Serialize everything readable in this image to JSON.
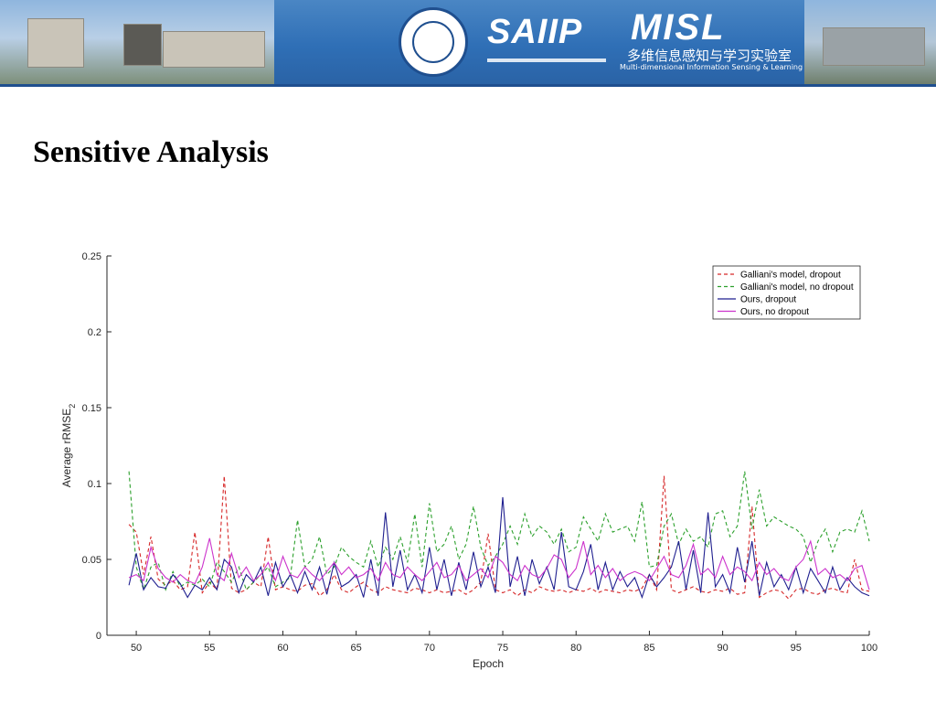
{
  "banner": {
    "saiip": "SAIIP",
    "misl": "MISL",
    "misl_cn": "多维信息感知与学习实验室",
    "misl_en": "Multi-dimensional Information Sensing & Learning Lab"
  },
  "title": "Sensitive Analysis",
  "chart_data": {
    "type": "line",
    "xlabel": "Epoch",
    "ylabel": "Average rRMSE",
    "ylabel_sub": "2",
    "xlim": [
      48,
      100
    ],
    "ylim": [
      0,
      0.25
    ],
    "xticks": [
      "50",
      "55",
      "60",
      "65",
      "70",
      "75",
      "80",
      "85",
      "90",
      "95",
      "100"
    ],
    "yticks": [
      "0",
      "0.05",
      "0.1",
      "0.15",
      "0.2",
      "0.25"
    ],
    "legend_position": "top-right",
    "grid": false,
    "series": [
      {
        "name": "Galliani's model, dropout",
        "color": "#d62728",
        "dash": "dashed",
        "x": [
          49.5,
          50,
          50.5,
          51,
          51.5,
          52,
          52.5,
          53,
          53.5,
          54,
          54.5,
          55,
          55.5,
          56,
          56.5,
          57,
          57.5,
          58,
          58.5,
          59,
          59.5,
          60,
          60.5,
          61,
          61.5,
          62,
          62.5,
          63,
          63.5,
          64,
          64.5,
          65,
          65.5,
          66,
          66.5,
          67,
          67.5,
          68,
          68.5,
          69,
          69.5,
          70,
          70.5,
          71,
          71.5,
          72,
          72.5,
          73,
          73.5,
          74,
          74.5,
          75,
          75.5,
          76,
          76.5,
          77,
          77.5,
          78,
          78.5,
          79,
          79.5,
          80,
          80.5,
          81,
          81.5,
          82,
          82.5,
          83,
          83.5,
          84,
          84.5,
          85,
          85.5,
          86,
          86.5,
          87,
          87.5,
          88,
          88.5,
          89,
          89.5,
          90,
          90.5,
          91,
          91.5,
          92,
          92.5,
          93,
          93.5,
          94,
          94.5,
          95,
          95.5,
          96,
          96.5,
          97,
          97.5,
          98,
          98.5,
          99,
          99.5,
          100
        ],
        "y": [
          0.073,
          0.068,
          0.04,
          0.065,
          0.037,
          0.033,
          0.036,
          0.03,
          0.032,
          0.068,
          0.028,
          0.035,
          0.03,
          0.105,
          0.031,
          0.028,
          0.03,
          0.035,
          0.032,
          0.065,
          0.03,
          0.032,
          0.03,
          0.029,
          0.033,
          0.034,
          0.026,
          0.03,
          0.04,
          0.03,
          0.028,
          0.032,
          0.035,
          0.03,
          0.028,
          0.032,
          0.03,
          0.029,
          0.028,
          0.031,
          0.03,
          0.028,
          0.03,
          0.028,
          0.029,
          0.03,
          0.027,
          0.03,
          0.035,
          0.067,
          0.03,
          0.028,
          0.03,
          0.026,
          0.03,
          0.028,
          0.032,
          0.03,
          0.029,
          0.03,
          0.028,
          0.03,
          0.029,
          0.031,
          0.028,
          0.03,
          0.029,
          0.028,
          0.03,
          0.029,
          0.031,
          0.04,
          0.03,
          0.105,
          0.03,
          0.028,
          0.03,
          0.032,
          0.029,
          0.028,
          0.03,
          0.029,
          0.031,
          0.027,
          0.028,
          0.085,
          0.025,
          0.028,
          0.03,
          0.029,
          0.024,
          0.03,
          0.031,
          0.028,
          0.027,
          0.03,
          0.031,
          0.029,
          0.028,
          0.05,
          0.03,
          0.029
        ]
      },
      {
        "name": "Galliani's model, no dropout",
        "color": "#2ca02c",
        "dash": "dashed",
        "x": [
          49.5,
          50,
          50.5,
          51,
          51.5,
          52,
          52.5,
          53,
          53.5,
          54,
          54.5,
          55,
          55.5,
          56,
          56.5,
          57,
          57.5,
          58,
          58.5,
          59,
          59.5,
          60,
          60.5,
          61,
          61.5,
          62,
          62.5,
          63,
          63.5,
          64,
          64.5,
          65,
          65.5,
          66,
          66.5,
          67,
          67.5,
          68,
          68.5,
          69,
          69.5,
          70,
          70.5,
          71,
          71.5,
          72,
          72.5,
          73,
          73.5,
          74,
          74.5,
          75,
          75.5,
          76,
          76.5,
          77,
          77.5,
          78,
          78.5,
          79,
          79.5,
          80,
          80.5,
          81,
          81.5,
          82,
          82.5,
          83,
          83.5,
          84,
          84.5,
          85,
          85.5,
          86,
          86.5,
          87,
          87.5,
          88,
          88.5,
          89,
          89.5,
          90,
          90.5,
          91,
          91.5,
          92,
          92.5,
          93,
          93.5,
          94,
          94.5,
          95,
          95.5,
          96,
          96.5,
          97,
          97.5,
          98,
          98.5,
          99,
          99.5,
          100
        ],
        "y": [
          0.108,
          0.045,
          0.03,
          0.045,
          0.048,
          0.03,
          0.042,
          0.032,
          0.035,
          0.033,
          0.037,
          0.032,
          0.048,
          0.042,
          0.035,
          0.045,
          0.03,
          0.035,
          0.04,
          0.045,
          0.032,
          0.035,
          0.038,
          0.076,
          0.045,
          0.05,
          0.065,
          0.04,
          0.045,
          0.058,
          0.052,
          0.048,
          0.045,
          0.062,
          0.045,
          0.058,
          0.05,
          0.065,
          0.048,
          0.08,
          0.045,
          0.087,
          0.055,
          0.06,
          0.072,
          0.05,
          0.06,
          0.085,
          0.058,
          0.046,
          0.052,
          0.06,
          0.072,
          0.06,
          0.08,
          0.065,
          0.072,
          0.068,
          0.06,
          0.07,
          0.055,
          0.058,
          0.078,
          0.07,
          0.062,
          0.08,
          0.068,
          0.07,
          0.072,
          0.062,
          0.088,
          0.045,
          0.046,
          0.072,
          0.08,
          0.06,
          0.07,
          0.062,
          0.065,
          0.058,
          0.08,
          0.082,
          0.065,
          0.072,
          0.108,
          0.07,
          0.096,
          0.072,
          0.078,
          0.075,
          0.072,
          0.07,
          0.065,
          0.048,
          0.062,
          0.07,
          0.055,
          0.068,
          0.07,
          0.068,
          0.082,
          0.062
        ]
      },
      {
        "name": "Ours, dropout",
        "color": "#1f1f8f",
        "dash": "solid",
        "x": [
          49.5,
          50,
          50.5,
          51,
          51.5,
          52,
          52.5,
          53,
          53.5,
          54,
          54.5,
          55,
          55.5,
          56,
          56.5,
          57,
          57.5,
          58,
          58.5,
          59,
          59.5,
          60,
          60.5,
          61,
          61.5,
          62,
          62.5,
          63,
          63.5,
          64,
          64.5,
          65,
          65.5,
          66,
          66.5,
          67,
          67.5,
          68,
          68.5,
          69,
          69.5,
          70,
          70.5,
          71,
          71.5,
          72,
          72.5,
          73,
          73.5,
          74,
          74.5,
          75,
          75.5,
          76,
          76.5,
          77,
          77.5,
          78,
          78.5,
          79,
          79.5,
          80,
          80.5,
          81,
          81.5,
          82,
          82.5,
          83,
          83.5,
          84,
          84.5,
          85,
          85.5,
          86,
          86.5,
          87,
          87.5,
          88,
          88.5,
          89,
          89.5,
          90,
          90.5,
          91,
          91.5,
          92,
          92.5,
          93,
          93.5,
          94,
          94.5,
          95,
          95.5,
          96,
          96.5,
          97,
          97.5,
          98,
          98.5,
          99,
          99.5,
          100
        ],
        "y": [
          0.033,
          0.054,
          0.03,
          0.038,
          0.032,
          0.031,
          0.04,
          0.034,
          0.025,
          0.033,
          0.03,
          0.038,
          0.03,
          0.05,
          0.045,
          0.028,
          0.04,
          0.035,
          0.045,
          0.026,
          0.048,
          0.032,
          0.04,
          0.028,
          0.042,
          0.03,
          0.045,
          0.027,
          0.048,
          0.032,
          0.035,
          0.04,
          0.025,
          0.05,
          0.026,
          0.081,
          0.032,
          0.056,
          0.03,
          0.04,
          0.028,
          0.058,
          0.03,
          0.05,
          0.026,
          0.048,
          0.03,
          0.055,
          0.032,
          0.045,
          0.028,
          0.091,
          0.032,
          0.052,
          0.026,
          0.05,
          0.034,
          0.045,
          0.03,
          0.068,
          0.032,
          0.03,
          0.042,
          0.06,
          0.03,
          0.048,
          0.03,
          0.042,
          0.032,
          0.038,
          0.025,
          0.04,
          0.032,
          0.038,
          0.045,
          0.062,
          0.03,
          0.056,
          0.028,
          0.081,
          0.032,
          0.04,
          0.028,
          0.058,
          0.035,
          0.062,
          0.026,
          0.048,
          0.032,
          0.04,
          0.03,
          0.045,
          0.028,
          0.044,
          0.036,
          0.028,
          0.045,
          0.03,
          0.038,
          0.032,
          0.028,
          0.026
        ]
      },
      {
        "name": "Ours, no dropout",
        "color": "#cc33cc",
        "dash": "solid",
        "x": [
          49.5,
          50,
          50.5,
          51,
          51.5,
          52,
          52.5,
          53,
          53.5,
          54,
          54.5,
          55,
          55.5,
          56,
          56.5,
          57,
          57.5,
          58,
          58.5,
          59,
          59.5,
          60,
          60.5,
          61,
          61.5,
          62,
          62.5,
          63,
          63.5,
          64,
          64.5,
          65,
          65.5,
          66,
          66.5,
          67,
          67.5,
          68,
          68.5,
          69,
          69.5,
          70,
          70.5,
          71,
          71.5,
          72,
          72.5,
          73,
          73.5,
          74,
          74.5,
          75,
          75.5,
          76,
          76.5,
          77,
          77.5,
          78,
          78.5,
          79,
          79.5,
          80,
          80.5,
          81,
          81.5,
          82,
          82.5,
          83,
          83.5,
          84,
          84.5,
          85,
          85.5,
          86,
          86.5,
          87,
          87.5,
          88,
          88.5,
          89,
          89.5,
          90,
          90.5,
          91,
          91.5,
          92,
          92.5,
          93,
          93.5,
          94,
          94.5,
          95,
          95.5,
          96,
          96.5,
          97,
          97.5,
          98,
          98.5,
          99,
          99.5,
          100
        ],
        "y": [
          0.038,
          0.04,
          0.036,
          0.058,
          0.044,
          0.038,
          0.035,
          0.04,
          0.036,
          0.034,
          0.045,
          0.064,
          0.04,
          0.036,
          0.054,
          0.038,
          0.045,
          0.036,
          0.04,
          0.048,
          0.036,
          0.052,
          0.04,
          0.038,
          0.045,
          0.04,
          0.036,
          0.042,
          0.048,
          0.04,
          0.045,
          0.038,
          0.04,
          0.044,
          0.036,
          0.048,
          0.04,
          0.038,
          0.045,
          0.04,
          0.036,
          0.042,
          0.048,
          0.038,
          0.04,
          0.046,
          0.036,
          0.04,
          0.044,
          0.038,
          0.052,
          0.048,
          0.04,
          0.036,
          0.046,
          0.04,
          0.038,
          0.044,
          0.053,
          0.05,
          0.038,
          0.044,
          0.062,
          0.04,
          0.046,
          0.038,
          0.044,
          0.036,
          0.04,
          0.042,
          0.04,
          0.036,
          0.044,
          0.052,
          0.04,
          0.038,
          0.046,
          0.06,
          0.04,
          0.044,
          0.038,
          0.052,
          0.04,
          0.045,
          0.042,
          0.036,
          0.048,
          0.04,
          0.044,
          0.038,
          0.036,
          0.045,
          0.05,
          0.062,
          0.04,
          0.044,
          0.038,
          0.04,
          0.036,
          0.044,
          0.046,
          0.03
        ]
      }
    ]
  }
}
